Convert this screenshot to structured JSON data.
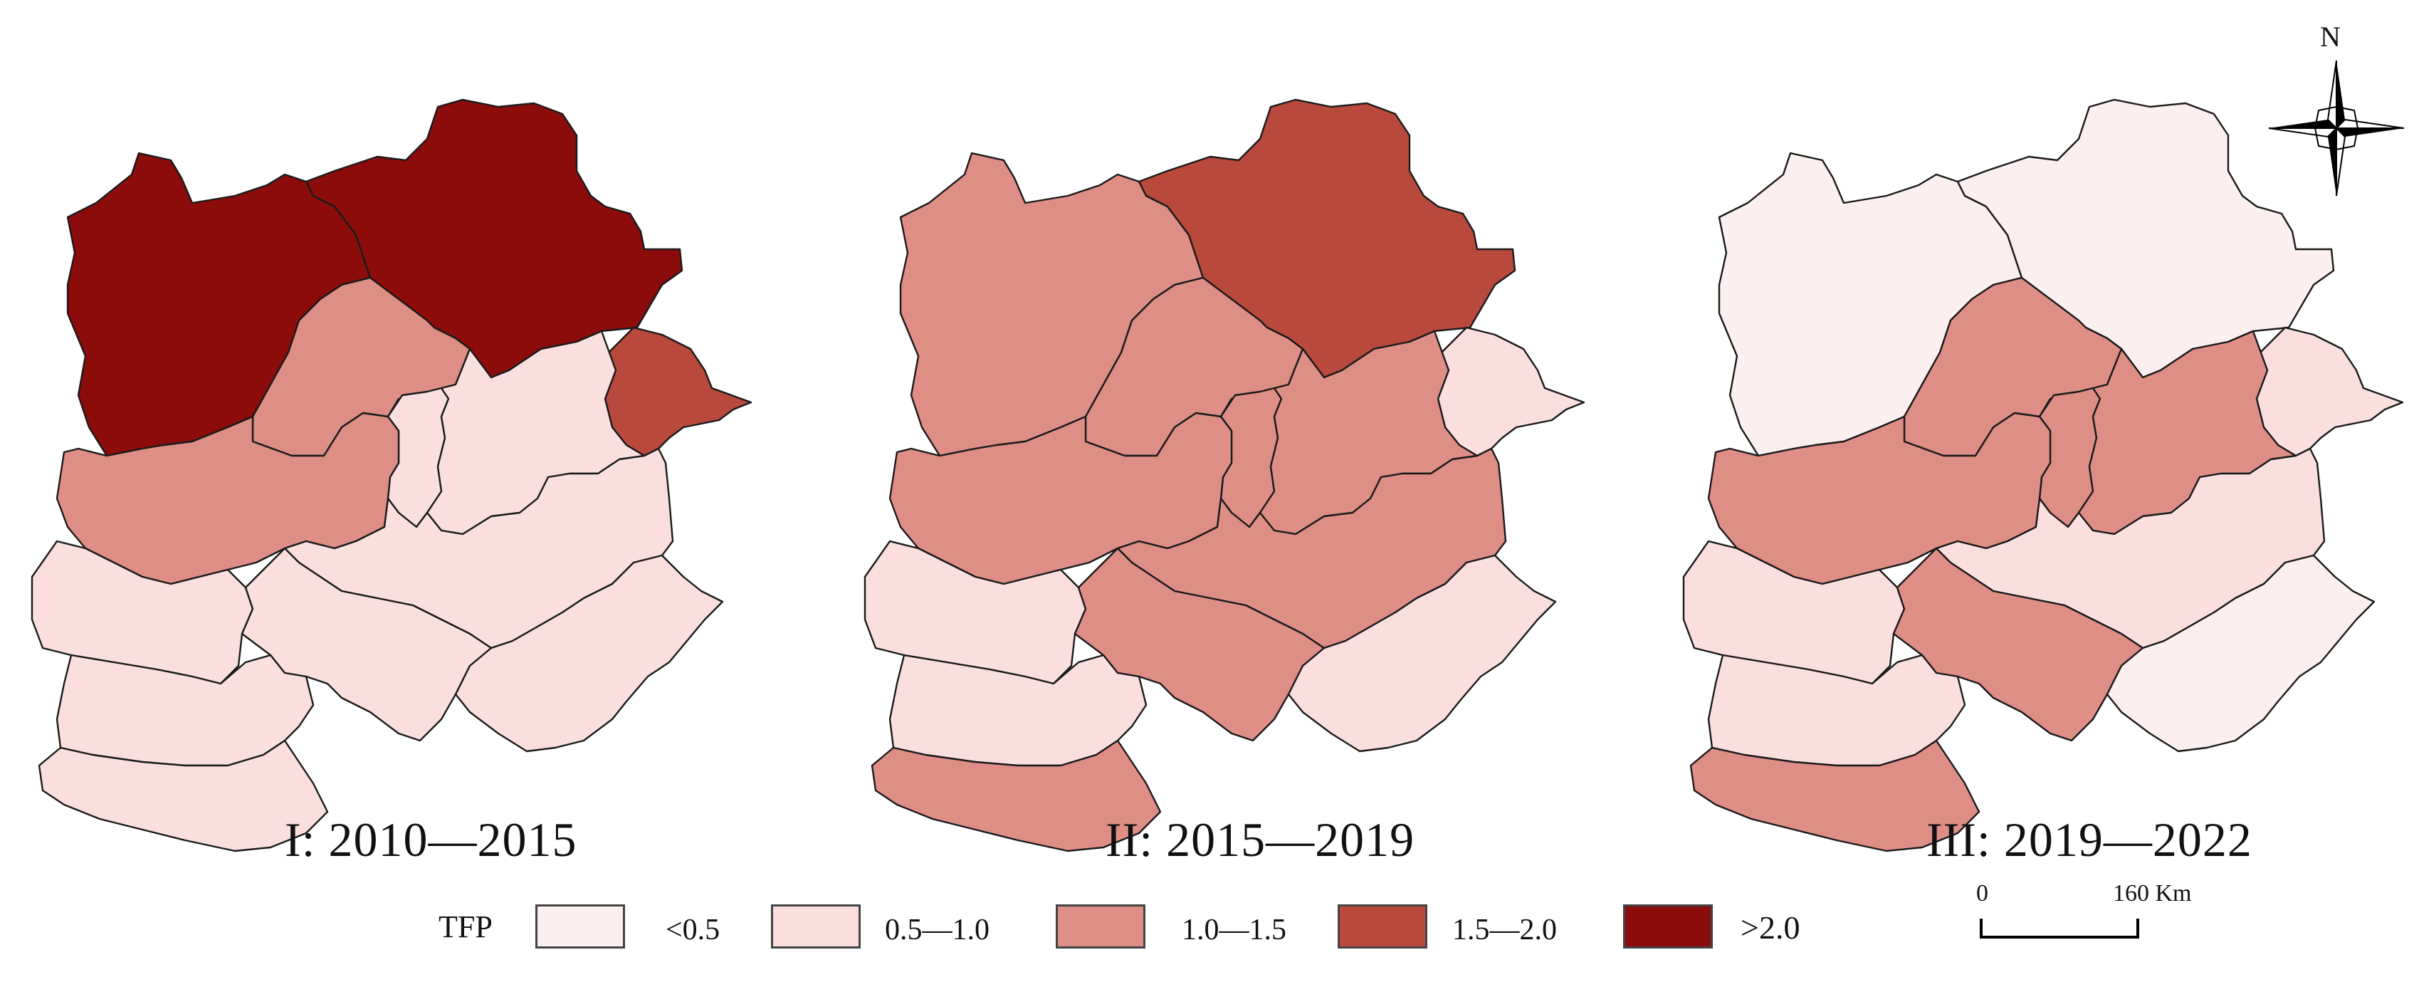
{
  "panels": [
    {
      "title": "I: 2010—2015",
      "classes": {
        "nw": 4,
        "ne": 4,
        "bj": 2,
        "tj": 1,
        "ce": 1,
        "e": 3,
        "se": 1,
        "mid": 1,
        "sc": 1,
        "w": 2,
        "sw": 1,
        "s1": 1,
        "s2": 1
      }
    },
    {
      "title": "II: 2015—2019",
      "classes": {
        "nw": 2,
        "ne": 3,
        "bj": 2,
        "tj": 2,
        "ce": 2,
        "e": 1,
        "se": 1,
        "mid": 2,
        "sc": 2,
        "w": 2,
        "sw": 1,
        "s1": 1,
        "s2": 2
      }
    },
    {
      "title": "III: 2019—2022",
      "classes": {
        "nw": 0,
        "ne": 0,
        "bj": 2,
        "tj": 2,
        "ce": 2,
        "e": 1,
        "se": 0,
        "mid": 1,
        "sc": 2,
        "w": 2,
        "sw": 1,
        "s1": 1,
        "s2": 2
      }
    }
  ],
  "legend": {
    "title": "TFP",
    "classes": [
      {
        "label": "<0.5",
        "color": "#fcefef"
      },
      {
        "label": "0.5—1.0",
        "color": "#fbdfdf"
      },
      {
        "label": "1.0—1.5",
        "color": "#df8e86"
      },
      {
        "label": "1.5—2.0",
        "color": "#b9493c"
      },
      {
        "label": ">2.0",
        "color": "#8c0c0c"
      }
    ]
  },
  "scale_bar": {
    "start": "0",
    "end": "160 Km"
  },
  "north_arrow": {
    "label": "N",
    "icon": "compass-rose-icon"
  }
}
